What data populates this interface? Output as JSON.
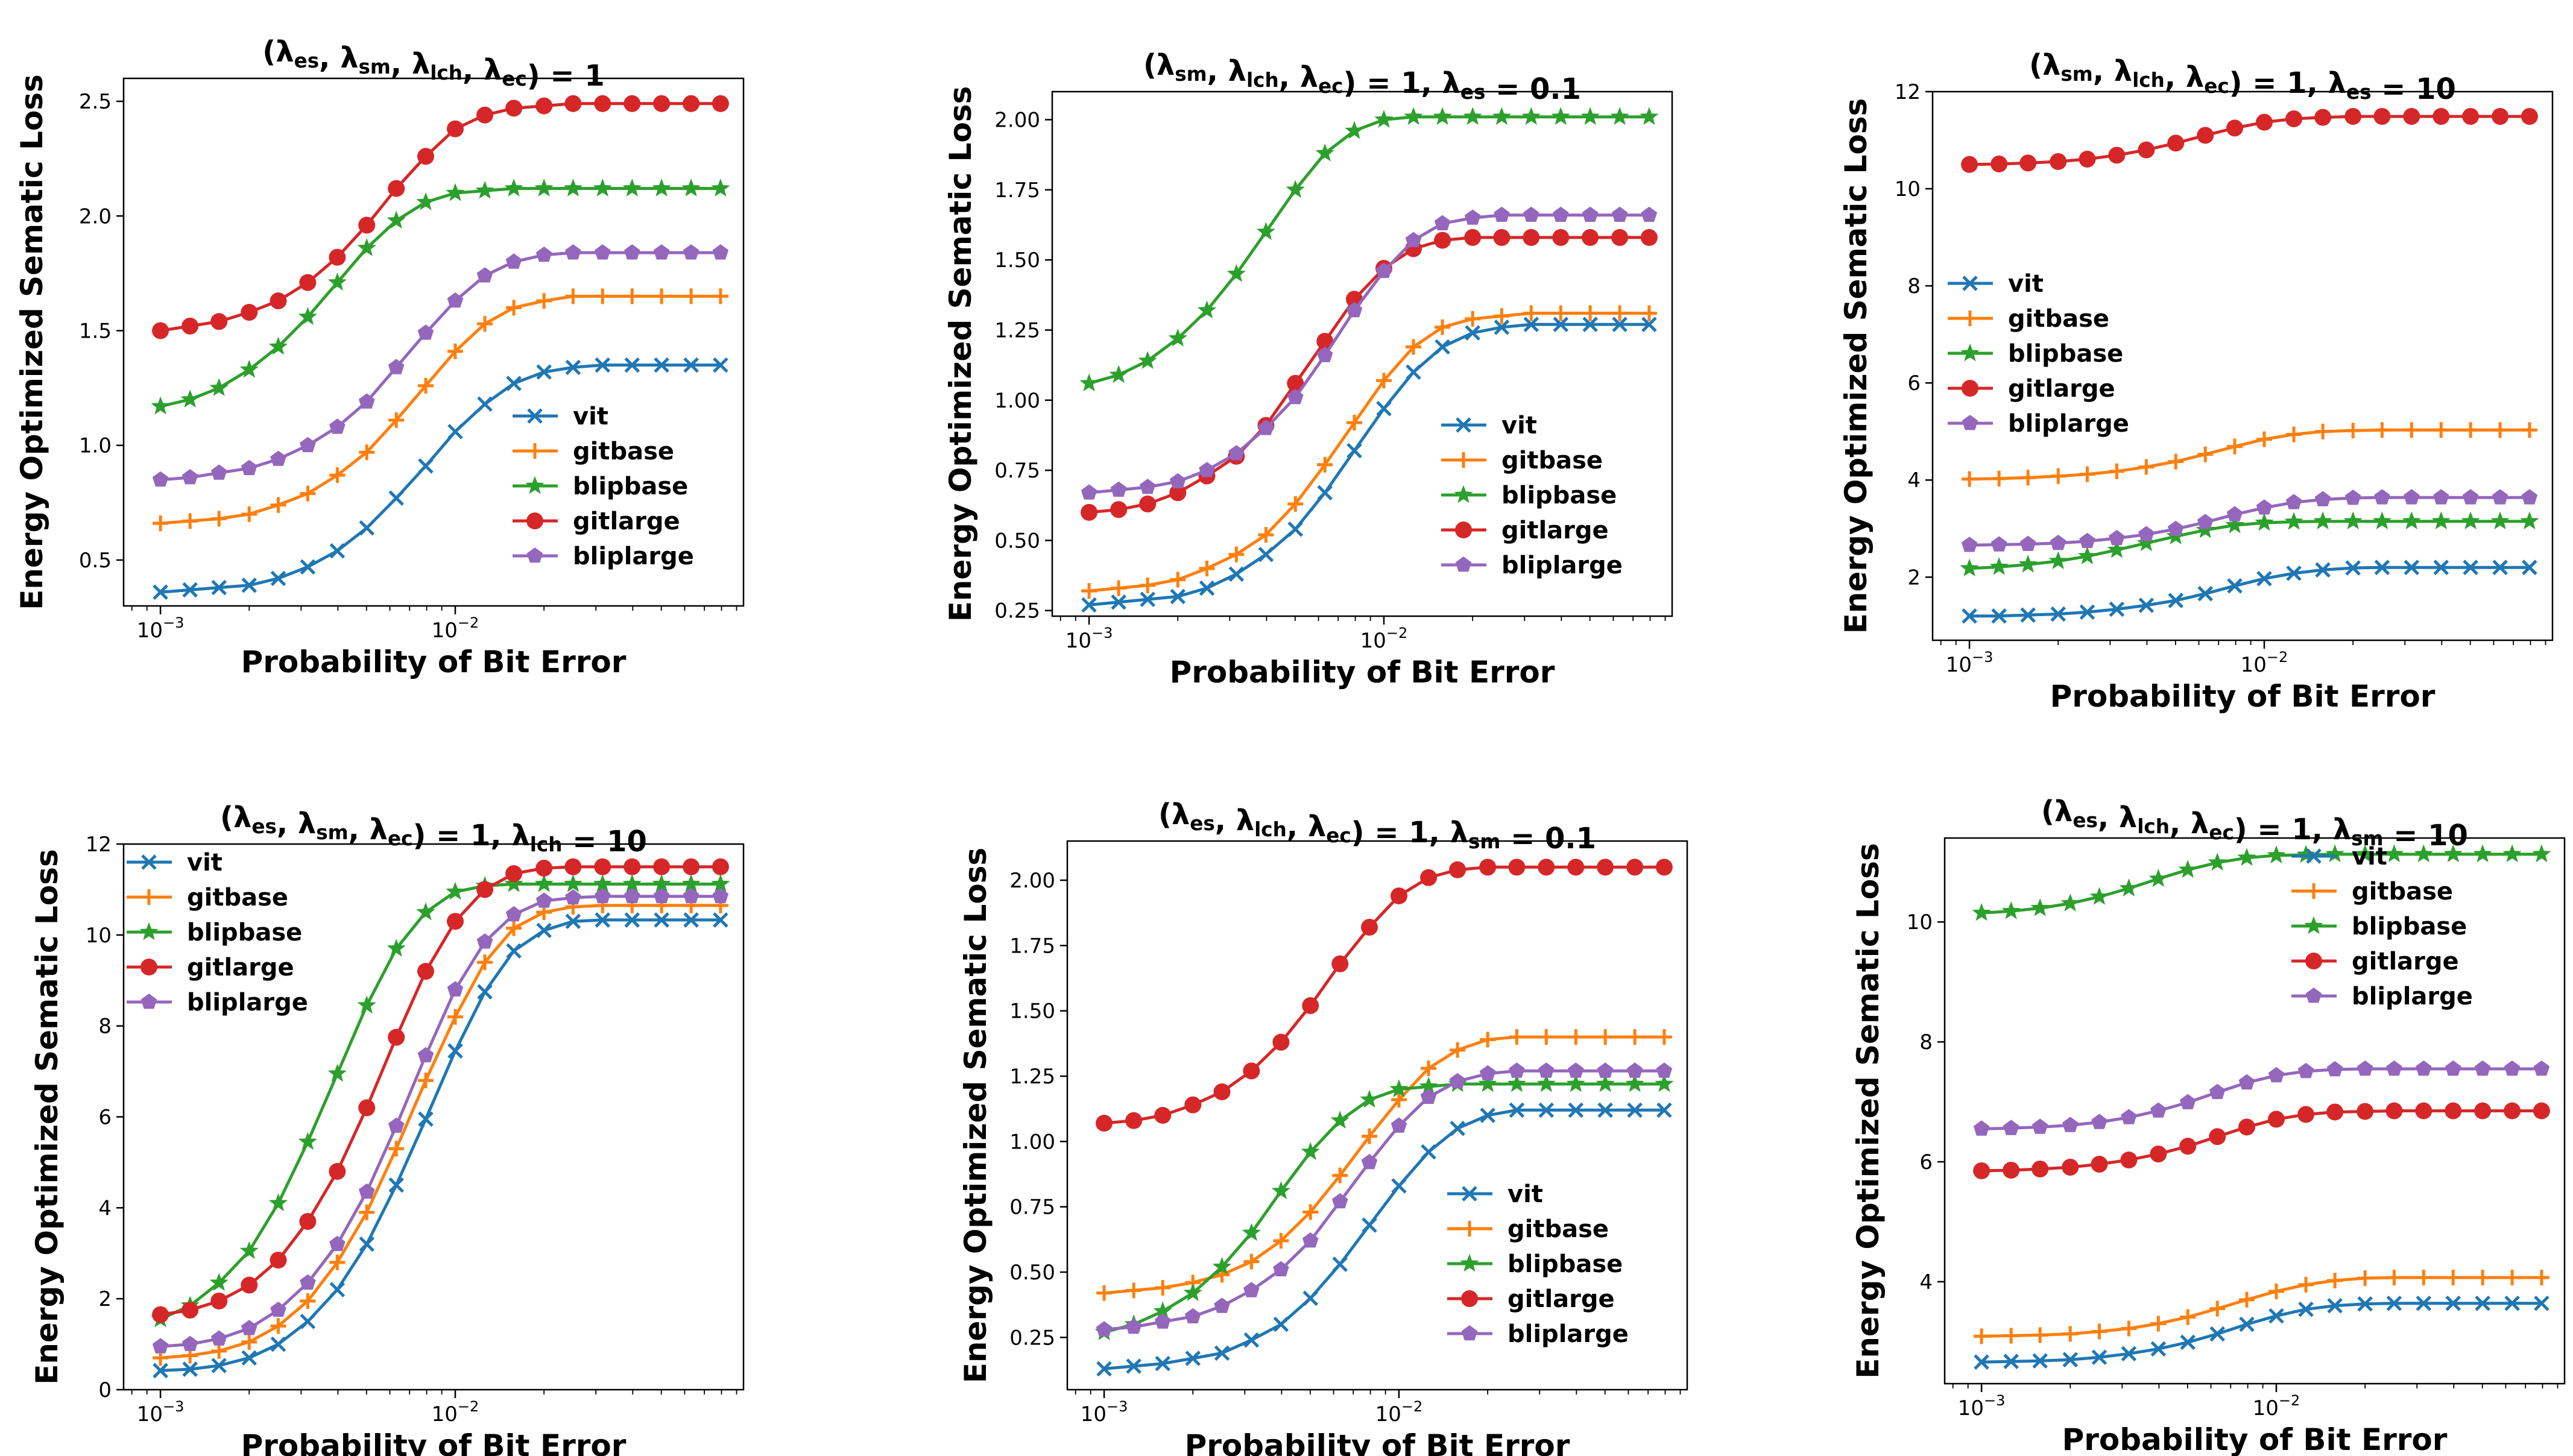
{
  "chart_data": [
    {
      "type": "line",
      "title_html": "(λ<sub>es</sub>, λ<sub>sm</sub>, λ<sub>lch</sub>, λ<sub>ec</sub>) = 1",
      "title": "(λes, λsm, λlch, λec) = 1",
      "xlabel": "Probability of Bit Error",
      "ylabel": "Energy Optimized Sematic Loss",
      "xscale": "log",
      "xlim": [
        0.00075,
        0.095
      ],
      "ylim": [
        0.3,
        2.6
      ],
      "yticks": [
        0.5,
        1.0,
        1.5,
        2.0,
        2.5
      ],
      "ytick_labels": [
        "0.5",
        "1.0",
        "1.5",
        "2.0",
        "2.5"
      ],
      "xticks": [
        0.001,
        0.01
      ],
      "legend": "lower-right",
      "series": [
        {
          "name": "vit",
          "color": "#1f77b4",
          "marker": "x",
          "values": [
            0.36,
            0.37,
            0.38,
            0.39,
            0.42,
            0.47,
            0.54,
            0.64,
            0.77,
            0.91,
            1.06,
            1.18,
            1.27,
            1.32,
            1.34,
            1.35,
            1.35,
            1.35,
            1.35,
            1.35
          ]
        },
        {
          "name": "gitbase",
          "color": "#ff7f0e",
          "marker": "+",
          "values": [
            0.66,
            0.67,
            0.68,
            0.7,
            0.74,
            0.79,
            0.87,
            0.97,
            1.11,
            1.26,
            1.41,
            1.53,
            1.6,
            1.63,
            1.65,
            1.65,
            1.65,
            1.65,
            1.65,
            1.65
          ]
        },
        {
          "name": "blipbase",
          "color": "#2ca02c",
          "marker": "*",
          "values": [
            1.17,
            1.2,
            1.25,
            1.33,
            1.43,
            1.56,
            1.71,
            1.86,
            1.98,
            2.06,
            2.1,
            2.11,
            2.12,
            2.12,
            2.12,
            2.12,
            2.12,
            2.12,
            2.12,
            2.12
          ]
        },
        {
          "name": "gitlarge",
          "color": "#d62728",
          "marker": "o",
          "values": [
            1.5,
            1.52,
            1.54,
            1.58,
            1.63,
            1.71,
            1.82,
            1.96,
            2.12,
            2.26,
            2.38,
            2.44,
            2.47,
            2.48,
            2.49,
            2.49,
            2.49,
            2.49,
            2.49,
            2.49
          ]
        },
        {
          "name": "bliplarge",
          "color": "#9467bd",
          "marker": "p",
          "values": [
            0.85,
            0.86,
            0.88,
            0.9,
            0.94,
            1.0,
            1.08,
            1.19,
            1.34,
            1.49,
            1.63,
            1.74,
            1.8,
            1.83,
            1.84,
            1.84,
            1.84,
            1.84,
            1.84,
            1.84
          ]
        }
      ]
    },
    {
      "type": "line",
      "title_html": "(λ<sub>sm</sub>, λ<sub>lch</sub>, λ<sub>ec</sub>) = 1, λ<sub>es</sub> = 0.1",
      "title": "(λsm, λlch, λec) = 1, λes = 0.1",
      "xlabel": "Probability of Bit Error",
      "ylabel": "Energy Optimized Sematic Loss",
      "xscale": "log",
      "xlim": [
        0.00075,
        0.095
      ],
      "ylim": [
        0.23,
        2.1
      ],
      "yticks": [
        0.25,
        0.5,
        0.75,
        1.0,
        1.25,
        1.5,
        1.75,
        2.0
      ],
      "ytick_labels": [
        "0.25",
        "0.50",
        "0.75",
        "1.00",
        "1.25",
        "1.50",
        "1.75",
        "2.00"
      ],
      "xticks": [
        0.001,
        0.01
      ],
      "legend": "lower-right",
      "series": [
        {
          "name": "vit",
          "color": "#1f77b4",
          "marker": "x",
          "values": [
            0.27,
            0.28,
            0.29,
            0.3,
            0.33,
            0.38,
            0.45,
            0.54,
            0.67,
            0.82,
            0.97,
            1.1,
            1.19,
            1.24,
            1.26,
            1.27,
            1.27,
            1.27,
            1.27,
            1.27
          ]
        },
        {
          "name": "gitbase",
          "color": "#ff7f0e",
          "marker": "+",
          "values": [
            0.32,
            0.33,
            0.34,
            0.36,
            0.4,
            0.45,
            0.52,
            0.63,
            0.77,
            0.92,
            1.07,
            1.19,
            1.26,
            1.29,
            1.3,
            1.31,
            1.31,
            1.31,
            1.31,
            1.31
          ]
        },
        {
          "name": "blipbase",
          "color": "#2ca02c",
          "marker": "*",
          "values": [
            1.06,
            1.09,
            1.14,
            1.22,
            1.32,
            1.45,
            1.6,
            1.75,
            1.88,
            1.96,
            2.0,
            2.01,
            2.01,
            2.01,
            2.01,
            2.01,
            2.01,
            2.01,
            2.01,
            2.01
          ]
        },
        {
          "name": "gitlarge",
          "color": "#d62728",
          "marker": "o",
          "values": [
            0.6,
            0.61,
            0.63,
            0.67,
            0.73,
            0.8,
            0.91,
            1.06,
            1.21,
            1.36,
            1.47,
            1.54,
            1.57,
            1.58,
            1.58,
            1.58,
            1.58,
            1.58,
            1.58,
            1.58
          ]
        },
        {
          "name": "bliplarge",
          "color": "#9467bd",
          "marker": "p",
          "values": [
            0.67,
            0.68,
            0.69,
            0.71,
            0.75,
            0.81,
            0.9,
            1.01,
            1.16,
            1.32,
            1.46,
            1.57,
            1.63,
            1.65,
            1.66,
            1.66,
            1.66,
            1.66,
            1.66,
            1.66
          ]
        }
      ]
    },
    {
      "type": "line",
      "title_html": "(λ<sub>sm</sub>, λ<sub>lch</sub>, λ<sub>ec</sub>) = 1, λ<sub>es</sub> = 10",
      "title": "(λsm, λlch, λec) = 1, λes = 10",
      "xlabel": "Probability of Bit Error",
      "ylabel": "Energy Optimized Sematic Loss",
      "xscale": "log",
      "xlim": [
        0.00075,
        0.095
      ],
      "ylim": [
        0.7,
        12.0
      ],
      "yticks": [
        2,
        4,
        6,
        8,
        10,
        12
      ],
      "ytick_labels": [
        "2",
        "4",
        "6",
        "8",
        "10",
        "12"
      ],
      "xticks": [
        0.001,
        0.01
      ],
      "legend": "center-left",
      "series": [
        {
          "name": "vit",
          "color": "#1f77b4",
          "marker": "x",
          "values": [
            1.2,
            1.2,
            1.22,
            1.24,
            1.28,
            1.34,
            1.42,
            1.52,
            1.66,
            1.82,
            1.97,
            2.08,
            2.15,
            2.19,
            2.2,
            2.2,
            2.2,
            2.2,
            2.2,
            2.2
          ]
        },
        {
          "name": "gitbase",
          "color": "#ff7f0e",
          "marker": "+",
          "values": [
            4.02,
            4.03,
            4.05,
            4.08,
            4.12,
            4.18,
            4.27,
            4.38,
            4.53,
            4.69,
            4.84,
            4.94,
            5.0,
            5.02,
            5.03,
            5.03,
            5.03,
            5.03,
            5.03,
            5.03
          ]
        },
        {
          "name": "blipbase",
          "color": "#2ca02c",
          "marker": "*",
          "values": [
            2.18,
            2.21,
            2.26,
            2.33,
            2.43,
            2.56,
            2.7,
            2.84,
            2.97,
            3.07,
            3.12,
            3.14,
            3.15,
            3.15,
            3.15,
            3.15,
            3.15,
            3.15,
            3.15,
            3.15
          ]
        },
        {
          "name": "gitlarge",
          "color": "#d62728",
          "marker": "o",
          "values": [
            10.5,
            10.51,
            10.53,
            10.56,
            10.61,
            10.69,
            10.8,
            10.94,
            11.1,
            11.25,
            11.37,
            11.44,
            11.47,
            11.49,
            11.49,
            11.49,
            11.49,
            11.49,
            11.49,
            11.49
          ]
        },
        {
          "name": "bliplarge",
          "color": "#9467bd",
          "marker": "p",
          "values": [
            2.66,
            2.67,
            2.68,
            2.7,
            2.74,
            2.8,
            2.88,
            2.99,
            3.13,
            3.29,
            3.43,
            3.54,
            3.6,
            3.63,
            3.64,
            3.64,
            3.64,
            3.64,
            3.64,
            3.64
          ]
        }
      ]
    },
    {
      "type": "line",
      "title_html": "(λ<sub>es</sub>, λ<sub>sm</sub>, λ<sub>ec</sub>) = 1, λ<sub>lch</sub> = 10",
      "title": "(λes, λsm, λec) = 1, λlch = 10",
      "xlabel": "Probability of Bit Error",
      "ylabel": "Energy Optimized Sematic Loss",
      "xscale": "log",
      "xlim": [
        0.00075,
        0.095
      ],
      "ylim": [
        0,
        12.0
      ],
      "yticks": [
        0,
        2,
        4,
        6,
        8,
        10,
        12
      ],
      "ytick_labels": [
        "0",
        "2",
        "4",
        "6",
        "8",
        "10",
        "12"
      ],
      "xticks": [
        0.001,
        0.01
      ],
      "legend": "top-left",
      "series": [
        {
          "name": "vit",
          "color": "#1f77b4",
          "marker": "x",
          "values": [
            0.42,
            0.45,
            0.53,
            0.7,
            1.0,
            1.5,
            2.2,
            3.2,
            4.5,
            5.95,
            7.45,
            8.75,
            9.65,
            10.1,
            10.3,
            10.33,
            10.33,
            10.33,
            10.33,
            10.33
          ]
        },
        {
          "name": "gitbase",
          "color": "#ff7f0e",
          "marker": "+",
          "values": [
            0.7,
            0.75,
            0.85,
            1.05,
            1.4,
            1.95,
            2.8,
            3.9,
            5.3,
            6.8,
            8.2,
            9.4,
            10.15,
            10.5,
            10.62,
            10.65,
            10.65,
            10.65,
            10.65,
            10.65
          ]
        },
        {
          "name": "blipbase",
          "color": "#2ca02c",
          "marker": "*",
          "values": [
            1.55,
            1.85,
            2.35,
            3.05,
            4.1,
            5.45,
            6.95,
            8.45,
            9.7,
            10.5,
            10.95,
            11.08,
            11.12,
            11.12,
            11.12,
            11.12,
            11.12,
            11.12,
            11.12,
            11.12
          ]
        },
        {
          "name": "gitlarge",
          "color": "#d62728",
          "marker": "o",
          "values": [
            1.65,
            1.75,
            1.95,
            2.3,
            2.85,
            3.7,
            4.8,
            6.2,
            7.75,
            9.2,
            10.3,
            11.0,
            11.35,
            11.47,
            11.5,
            11.5,
            11.5,
            11.5,
            11.5,
            11.5
          ]
        },
        {
          "name": "bliplarge",
          "color": "#9467bd",
          "marker": "p",
          "values": [
            0.95,
            1.0,
            1.12,
            1.35,
            1.75,
            2.35,
            3.2,
            4.35,
            5.8,
            7.35,
            8.8,
            9.85,
            10.45,
            10.75,
            10.82,
            10.85,
            10.85,
            10.85,
            10.85,
            10.85
          ]
        }
      ]
    },
    {
      "type": "line",
      "title_html": "(λ<sub>es</sub>, λ<sub>lch</sub>, λ<sub>ec</sub>) = 1, λ<sub>sm</sub> = 0.1",
      "title": "(λes, λlch, λec) = 1, λsm = 0.1",
      "xlabel": "Probability of Bit Error",
      "ylabel": "Energy Optimized Sematic Loss",
      "xscale": "log",
      "xlim": [
        0.00075,
        0.095
      ],
      "ylim": [
        0.05,
        2.15
      ],
      "yticks": [
        0.25,
        0.5,
        0.75,
        1.0,
        1.25,
        1.5,
        1.75,
        2.0
      ],
      "ytick_labels": [
        "0.25",
        "0.50",
        "0.75",
        "1.00",
        "1.25",
        "1.50",
        "1.75",
        "2.00"
      ],
      "xticks": [
        0.001,
        0.01
      ],
      "legend": "lower-right",
      "series": [
        {
          "name": "vit",
          "color": "#1f77b4",
          "marker": "x",
          "values": [
            0.13,
            0.14,
            0.15,
            0.17,
            0.19,
            0.24,
            0.3,
            0.4,
            0.53,
            0.68,
            0.83,
            0.96,
            1.05,
            1.1,
            1.12,
            1.12,
            1.12,
            1.12,
            1.12,
            1.12
          ]
        },
        {
          "name": "gitbase",
          "color": "#ff7f0e",
          "marker": "+",
          "values": [
            0.42,
            0.43,
            0.44,
            0.46,
            0.49,
            0.54,
            0.62,
            0.73,
            0.87,
            1.02,
            1.16,
            1.28,
            1.35,
            1.39,
            1.4,
            1.4,
            1.4,
            1.4,
            1.4,
            1.4
          ]
        },
        {
          "name": "blipbase",
          "color": "#2ca02c",
          "marker": "*",
          "values": [
            0.27,
            0.3,
            0.35,
            0.42,
            0.52,
            0.65,
            0.81,
            0.96,
            1.08,
            1.16,
            1.2,
            1.21,
            1.22,
            1.22,
            1.22,
            1.22,
            1.22,
            1.22,
            1.22,
            1.22
          ]
        },
        {
          "name": "gitlarge",
          "color": "#d62728",
          "marker": "o",
          "values": [
            1.07,
            1.08,
            1.1,
            1.14,
            1.19,
            1.27,
            1.38,
            1.52,
            1.68,
            1.82,
            1.94,
            2.01,
            2.04,
            2.05,
            2.05,
            2.05,
            2.05,
            2.05,
            2.05,
            2.05
          ]
        },
        {
          "name": "bliplarge",
          "color": "#9467bd",
          "marker": "p",
          "values": [
            0.28,
            0.29,
            0.31,
            0.33,
            0.37,
            0.43,
            0.51,
            0.62,
            0.77,
            0.92,
            1.06,
            1.17,
            1.23,
            1.26,
            1.27,
            1.27,
            1.27,
            1.27,
            1.27,
            1.27
          ]
        }
      ]
    },
    {
      "type": "line",
      "title_html": "(λ<sub>es</sub>, λ<sub>lch</sub>, λ<sub>ec</sub>) = 1, λ<sub>sm</sub> = 10",
      "title": "(λes, λlch, λec) = 1, λsm = 10",
      "xlabel": "Probability of Bit Error",
      "ylabel": "Energy Optimized Sematic Loss",
      "xscale": "log",
      "xlim": [
        0.00075,
        0.095
      ],
      "ylim": [
        2.3,
        11.4
      ],
      "yticks": [
        4,
        6,
        8,
        10
      ],
      "ytick_labels": [
        "4",
        "6",
        "8",
        "10"
      ],
      "xticks": [
        0.001,
        0.01
      ],
      "legend": "top-right",
      "series": [
        {
          "name": "vit",
          "color": "#1f77b4",
          "marker": "x",
          "values": [
            2.66,
            2.67,
            2.68,
            2.7,
            2.74,
            2.8,
            2.88,
            2.99,
            3.13,
            3.29,
            3.43,
            3.54,
            3.6,
            3.63,
            3.64,
            3.64,
            3.64,
            3.64,
            3.64,
            3.64
          ]
        },
        {
          "name": "gitbase",
          "color": "#ff7f0e",
          "marker": "+",
          "values": [
            3.09,
            3.1,
            3.11,
            3.13,
            3.17,
            3.22,
            3.3,
            3.41,
            3.55,
            3.7,
            3.84,
            3.95,
            4.02,
            4.06,
            4.07,
            4.07,
            4.07,
            4.07,
            4.07,
            4.07
          ]
        },
        {
          "name": "blipbase",
          "color": "#2ca02c",
          "marker": "*",
          "values": [
            10.15,
            10.18,
            10.23,
            10.31,
            10.42,
            10.56,
            10.72,
            10.87,
            10.99,
            11.07,
            11.11,
            11.12,
            11.13,
            11.13,
            11.13,
            11.13,
            11.13,
            11.13,
            11.13,
            11.13
          ]
        },
        {
          "name": "gitlarge",
          "color": "#d62728",
          "marker": "o",
          "values": [
            5.85,
            5.86,
            5.88,
            5.91,
            5.96,
            6.03,
            6.13,
            6.26,
            6.42,
            6.58,
            6.71,
            6.79,
            6.83,
            6.84,
            6.85,
            6.85,
            6.85,
            6.85,
            6.85,
            6.85
          ]
        },
        {
          "name": "bliplarge",
          "color": "#9467bd",
          "marker": "p",
          "values": [
            6.55,
            6.56,
            6.58,
            6.61,
            6.66,
            6.74,
            6.85,
            6.99,
            7.16,
            7.32,
            7.44,
            7.51,
            7.54,
            7.55,
            7.55,
            7.55,
            7.55,
            7.55,
            7.55,
            7.55
          ]
        }
      ]
    }
  ],
  "x_values": [
    0.001,
    0.00126,
    0.00158,
    0.002,
    0.00251,
    0.00316,
    0.00398,
    0.00501,
    0.00631,
    0.00794,
    0.01,
    0.0126,
    0.0158,
    0.02,
    0.0251,
    0.0316,
    0.0398,
    0.0501,
    0.0631,
    0.0794
  ],
  "x_tick_base": "10",
  "x_tick_exponents": [
    "−3",
    "−2"
  ]
}
